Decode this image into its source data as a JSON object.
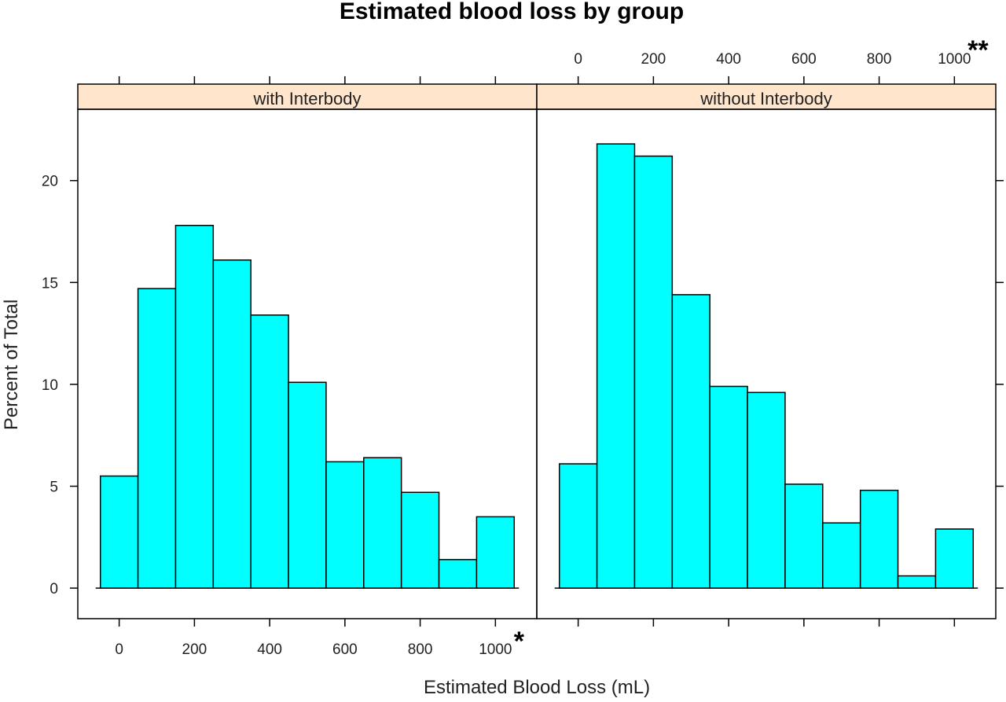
{
  "chart_data": {
    "type": "bar",
    "title": "Estimated blood loss by group",
    "xlabel": "Estimated Blood Loss (mL)",
    "ylabel": "Percent of Total",
    "bin_width": 100,
    "bin_centers": [
      0,
      100,
      200,
      300,
      400,
      500,
      600,
      700,
      800,
      900,
      1000
    ],
    "x_ticks": [
      0,
      200,
      400,
      600,
      800,
      1000
    ],
    "y_ticks": [
      0,
      5,
      10,
      15,
      20
    ],
    "xlim": [
      -110,
      1110
    ],
    "ylim": [
      -1.5,
      23.5
    ],
    "fill_color": "#00FFFF",
    "strip_color": "#FFE5CC",
    "grid": false,
    "panels": [
      {
        "name": "with Interbody",
        "values": [
          5.5,
          14.7,
          17.8,
          16.1,
          13.4,
          10.1,
          6.2,
          6.4,
          4.7,
          1.4,
          3.5
        ],
        "annotation": "*"
      },
      {
        "name": "without Interbody",
        "values": [
          6.1,
          21.8,
          21.2,
          14.4,
          9.9,
          9.6,
          5.1,
          3.2,
          4.8,
          0.6,
          2.9
        ],
        "annotation": "**"
      }
    ]
  }
}
